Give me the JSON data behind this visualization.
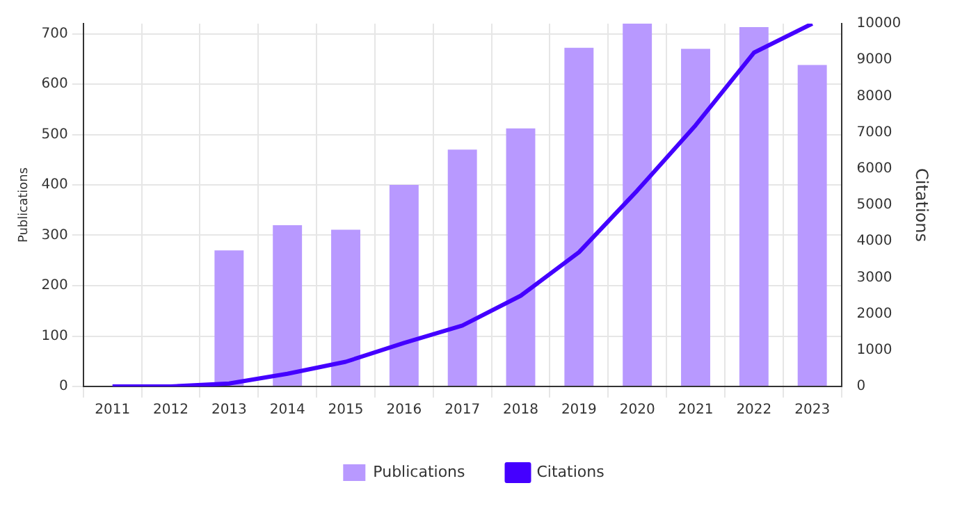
{
  "chart_data": {
    "type": "bar",
    "ylabel": "Publications",
    "y2label": "Citations",
    "categories": [
      "2011",
      "2012",
      "2013",
      "2014",
      "2015",
      "2016",
      "2017",
      "2018",
      "2019",
      "2020",
      "2021",
      "2022",
      "2023"
    ],
    "series": [
      {
        "name": "Publications",
        "color": "#b899ff",
        "values": [
          0,
          0,
          270,
          320,
          311,
          400,
          470,
          512,
          672,
          720,
          670,
          713,
          638
        ]
      },
      {
        "name": "Citations",
        "type": "line",
        "axis": "y2",
        "color": "#4400ff",
        "values": [
          0,
          0,
          80,
          350,
          680,
          1200,
          1680,
          2500,
          3700,
          5400,
          7200,
          9200,
          10000
        ]
      }
    ],
    "ylim": [
      0,
      720
    ],
    "yticks": [
      0,
      100,
      200,
      300,
      400,
      500,
      600,
      700
    ],
    "y2lim": [
      0,
      10000
    ],
    "y2ticks": [
      0,
      1000,
      2000,
      3000,
      4000,
      5000,
      6000,
      7000,
      8000,
      9000,
      10000
    ],
    "grid": true,
    "legend": "bottom",
    "marker": "none"
  }
}
